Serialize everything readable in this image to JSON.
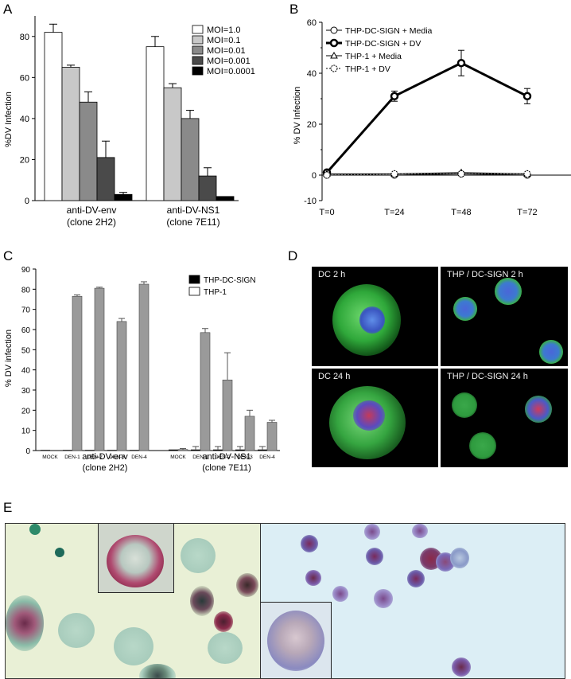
{
  "figure": {
    "panel_letters": [
      "A",
      "B",
      "C",
      "D",
      "E"
    ]
  },
  "panel_a": {
    "ylabel": "%DV Infection",
    "yticks": [
      "0",
      "20",
      "40",
      "60",
      "80"
    ],
    "groups": [
      "anti-DV-env",
      "anti-DV-NS1"
    ],
    "group_sublabels": [
      "(clone 2H2)",
      "(clone 7E11)"
    ],
    "legend": [
      "MOI=1.0",
      "MOI=0.1",
      "MOI=0.01",
      "MOI=0.001",
      "MOI=0.0001"
    ],
    "colors": [
      "#ffffff",
      "#c8c8c8",
      "#8a8a8a",
      "#4a4a4a",
      "#000000"
    ]
  },
  "panel_b": {
    "ylabel": "% DV Infection",
    "yticks": [
      "-10",
      "0",
      "20",
      "40",
      "60"
    ],
    "xticks": [
      "T=0",
      "T=24",
      "T=48",
      "T=72"
    ],
    "legend": [
      "THP-DC-SIGN + Media",
      "THP-DC-SIGN + DV",
      "THP-1 + Media",
      "THP-1 + DV"
    ]
  },
  "panel_c": {
    "ylabel": "% DV infection",
    "yticks": [
      "0",
      "10",
      "20",
      "30",
      "40",
      "50",
      "60",
      "70",
      "80",
      "90"
    ],
    "categories": [
      "MOCK",
      "DEN-1",
      "DEN-2",
      "DEN-3",
      "DEN-4"
    ],
    "groups": [
      "anti-DV-env",
      "anti-DV-NS1"
    ],
    "group_sublabels": [
      "(clone 2H2)",
      "(clone 7E11)"
    ],
    "legend": [
      "THP-DC-SIGN",
      "THP-1"
    ]
  },
  "panel_d": {
    "labels": [
      "DC 2 h",
      "THP / DC-SIGN 2 h",
      "DC 24 h",
      "THP / DC-SIGN 24 h"
    ]
  },
  "chart_data": [
    {
      "type": "bar",
      "panel": "A",
      "categories": [
        "anti-DV-env (clone 2H2)",
        "anti-DV-NS1 (clone 7E11)"
      ],
      "series": [
        {
          "name": "MOI=1.0",
          "values": [
            82,
            75
          ],
          "errors": [
            4,
            5
          ]
        },
        {
          "name": "MOI=0.1",
          "values": [
            65,
            55
          ],
          "errors": [
            1,
            2
          ]
        },
        {
          "name": "MOI=0.01",
          "values": [
            48,
            40
          ],
          "errors": [
            5,
            4
          ]
        },
        {
          "name": "MOI=0.001",
          "values": [
            21,
            12
          ],
          "errors": [
            8,
            4
          ]
        },
        {
          "name": "MOI=0.0001",
          "values": [
            3,
            2
          ],
          "errors": [
            1,
            0
          ]
        }
      ],
      "ylim": [
        0,
        90
      ],
      "ylabel": "%DV Infection",
      "legend_position": "top-right"
    },
    {
      "type": "line",
      "panel": "B",
      "x": [
        "T=0",
        "T=24",
        "T=48",
        "T=72"
      ],
      "series": [
        {
          "name": "THP-DC-SIGN + Media",
          "values": [
            0,
            0,
            0.5,
            0
          ],
          "errors": [
            0,
            0,
            0,
            0
          ]
        },
        {
          "name": "THP-DC-SIGN + DV",
          "values": [
            1,
            31,
            44,
            31
          ],
          "errors": [
            1,
            2,
            5,
            3
          ]
        },
        {
          "name": "THP-1 + Media",
          "values": [
            0.5,
            0.5,
            1,
            0.5
          ],
          "errors": [
            0,
            0,
            0,
            0
          ]
        },
        {
          "name": "THP-1 + DV",
          "values": [
            0,
            0.5,
            0.5,
            0.5
          ],
          "errors": [
            0,
            0,
            0,
            0
          ]
        }
      ],
      "ylim": [
        -10,
        60
      ],
      "ylabel": "% DV Infection",
      "legend_position": "top-left"
    },
    {
      "type": "bar",
      "panel": "C",
      "categories": [
        "MOCK",
        "DEN-1",
        "DEN-2",
        "DEN-3",
        "DEN-4"
      ],
      "groups": [
        "anti-DV-env (clone 2H2)",
        "anti-DV-NS1 (clone 7E11)"
      ],
      "series": [
        {
          "name": "THP-DC-SIGN",
          "group": "anti-DV-env (clone 2H2)",
          "values": [
            0.3,
            0.3,
            0.3,
            0.3,
            0.3
          ],
          "errors": [
            0,
            0,
            0,
            0,
            0
          ]
        },
        {
          "name": "THP-1",
          "group": "anti-DV-env (clone 2H2)",
          "values": [
            0,
            76.5,
            80.5,
            64,
            82.5
          ],
          "errors": [
            0,
            0.7,
            0.5,
            1.5,
            1.2
          ]
        },
        {
          "name": "THP-DC-SIGN",
          "group": "anti-DV-NS1 (clone 7E11)",
          "values": [
            0.5,
            0.5,
            0.5,
            0.5,
            0.5
          ],
          "errors": [
            0,
            1.5,
            1.5,
            1.5,
            1.5
          ]
        },
        {
          "name": "THP-1",
          "group": "anti-DV-NS1 (clone 7E11)",
          "values": [
            0.5,
            58.5,
            35,
            17,
            14
          ],
          "errors": [
            0.5,
            2,
            13.5,
            3,
            1
          ]
        }
      ],
      "ylim": [
        0,
        90
      ],
      "ylabel": "% DV infection",
      "legend_position": "top-right"
    }
  ]
}
